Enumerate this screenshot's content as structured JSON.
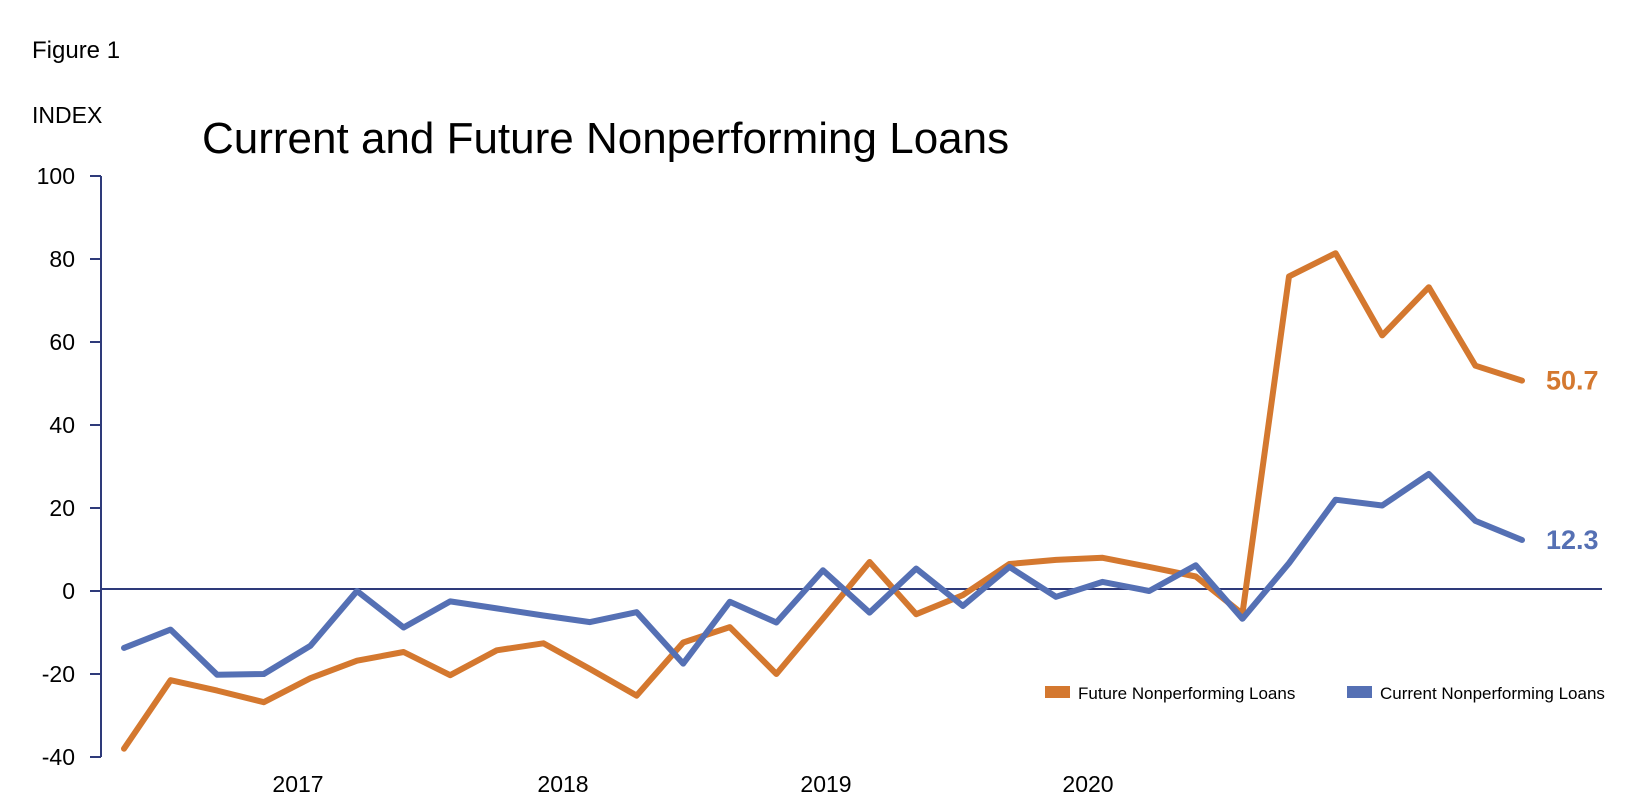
{
  "figure_label": "Figure 1",
  "chart_data": {
    "type": "line",
    "title": "Current and Future Nonperforming Loans",
    "ylabel": "INDEX",
    "xlabel": "",
    "ylim": [
      -40,
      100
    ],
    "yticks": [
      100,
      80,
      60,
      40,
      20,
      0,
      -20,
      -40
    ],
    "xtick_labels": [
      "2017",
      "2018",
      "2019",
      "2020"
    ],
    "grid": false,
    "legend_position": "bottom-right",
    "series": [
      {
        "name": "Future Nonperforming Loans",
        "color": "#D4782F",
        "end_label": "50.7",
        "values": [
          -38,
          -21.5,
          -24,
          -26.8,
          -21,
          -16.8,
          -14.7,
          -20.3,
          -14.3,
          -12.6,
          -18.8,
          -25.2,
          -12.4,
          -8.7,
          -20,
          -6.6,
          7,
          -5.6,
          -1,
          6.5,
          7.5,
          8,
          5.8,
          3.5,
          -5.5,
          75.8,
          81.4,
          61.6,
          73.2,
          54.3,
          50.7
        ]
      },
      {
        "name": "Current Nonperforming Loans",
        "color": "#5570B4",
        "end_label": "12.3",
        "values": [
          -13.7,
          -9.3,
          -20.2,
          -20,
          -13.2,
          0,
          -8.8,
          -2.5,
          -4.2,
          -5.9,
          -7.5,
          -5.1,
          -17.5,
          -2.6,
          -7.6,
          5,
          -5.2,
          5.4,
          -3.6,
          5.8,
          -1.4,
          2.2,
          0,
          6.2,
          -6.7,
          6.7,
          22,
          20.6,
          28.2,
          16.9,
          12.3
        ]
      }
    ]
  }
}
